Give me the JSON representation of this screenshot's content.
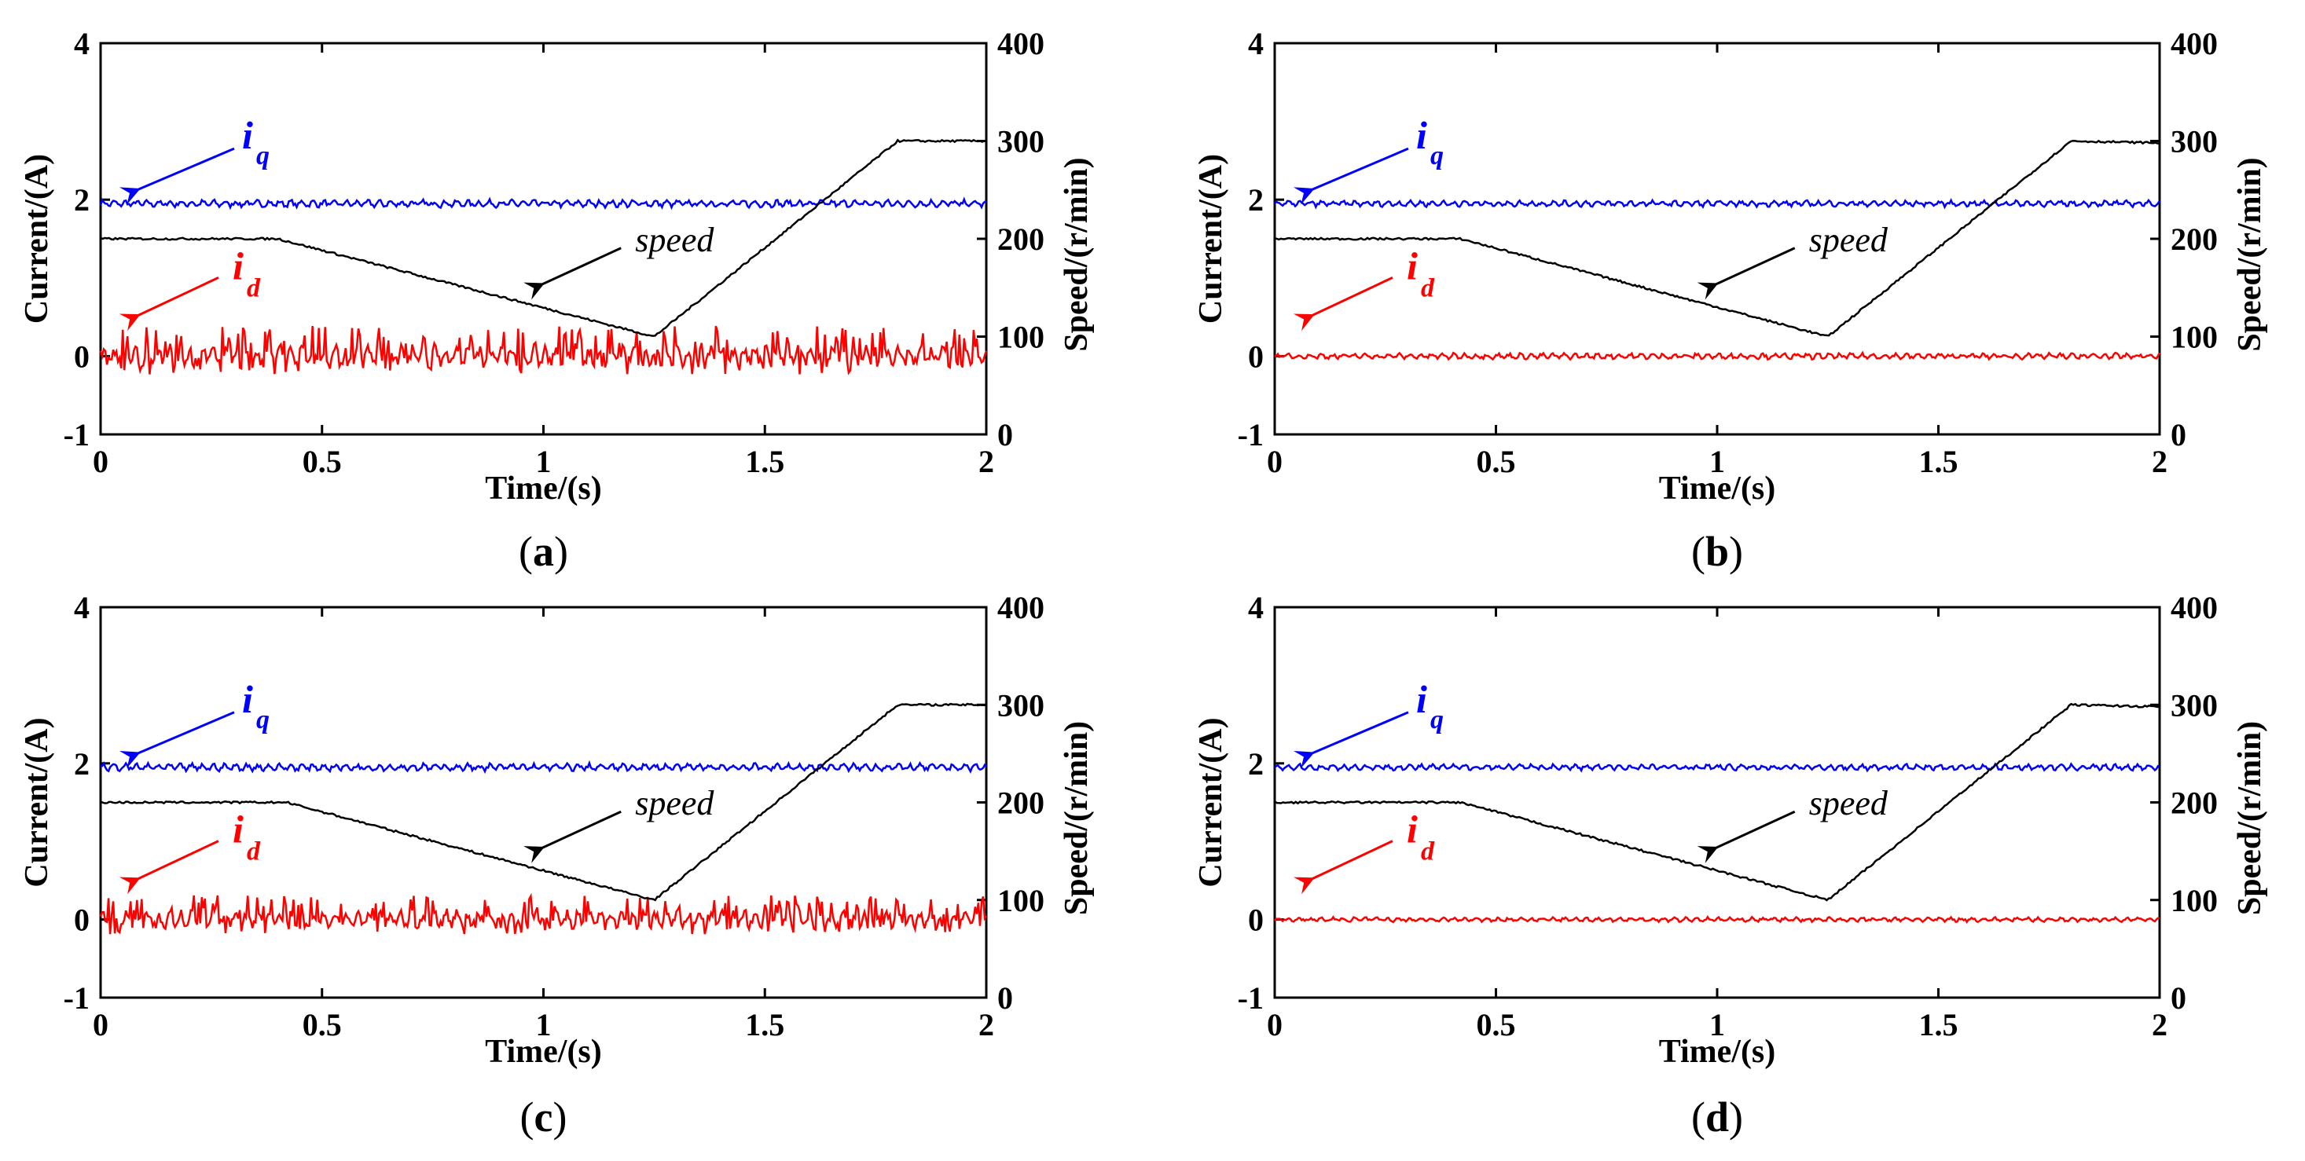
{
  "colors": {
    "iq": "#0000ff",
    "id": "#ff0000",
    "speed": "#000000"
  },
  "chart_data": [
    {
      "type": "line",
      "caption": "a",
      "xlabel": "Time/(s)",
      "ylabel_left": "Current/(A)",
      "ylabel_right": "Speed/(r/min)",
      "xlim": [
        0,
        2
      ],
      "ylim_left": [
        -1,
        4
      ],
      "ylim_right": [
        0,
        400
      ],
      "xticks": [
        "0",
        "0.5",
        "1",
        "1.5",
        "2"
      ],
      "yticks_left": [
        "-1",
        "0",
        "2",
        "4"
      ],
      "yticks_right": [
        "0",
        "100",
        "200",
        "300",
        "400"
      ],
      "annotations": {
        "iq": "i",
        "iq_sub": "q",
        "id": "i",
        "id_sub": "d",
        "speed": "speed"
      },
      "series": [
        {
          "name": "iq",
          "axis": "left",
          "mean": 1.95,
          "ripple": 0.05,
          "x": [
            0,
            2
          ],
          "values": [
            1.95,
            1.95
          ]
        },
        {
          "name": "id",
          "axis": "left",
          "mean": 0.0,
          "ripple": 0.15,
          "spiky": true,
          "x": [
            0,
            2
          ],
          "values": [
            0.0,
            0.0
          ]
        },
        {
          "name": "speed",
          "axis": "right",
          "x": [
            0,
            0.4,
            1.25,
            1.8,
            2.0
          ],
          "values": [
            200,
            200,
            100,
            300,
            300
          ]
        }
      ]
    },
    {
      "type": "line",
      "caption": "b",
      "xlabel": "Time/(s)",
      "ylabel_left": "Current/(A)",
      "ylabel_right": "Speed/(r/min)",
      "xlim": [
        0,
        2
      ],
      "ylim_left": [
        -1,
        4
      ],
      "ylim_right": [
        0,
        400
      ],
      "xticks": [
        "0",
        "0.5",
        "1",
        "1.5",
        "2"
      ],
      "yticks_left": [
        "-1",
        "0",
        "2",
        "4"
      ],
      "yticks_right": [
        "0",
        "100",
        "200",
        "300",
        "400"
      ],
      "annotations": {
        "iq": "i",
        "iq_sub": "q",
        "id": "i",
        "id_sub": "d",
        "speed": "speed"
      },
      "series": [
        {
          "name": "iq",
          "axis": "left",
          "mean": 1.95,
          "ripple": 0.04,
          "x": [
            0,
            2
          ],
          "values": [
            1.95,
            1.95
          ]
        },
        {
          "name": "id",
          "axis": "left",
          "mean": 0.0,
          "ripple": 0.04,
          "spiky": false,
          "x": [
            0,
            2
          ],
          "values": [
            0.0,
            0.0
          ]
        },
        {
          "name": "speed",
          "axis": "right",
          "x": [
            0,
            0.42,
            1.25,
            1.8,
            2.0
          ],
          "values": [
            200,
            200,
            100,
            300,
            298
          ]
        }
      ]
    },
    {
      "type": "line",
      "caption": "c",
      "xlabel": "Time/(s)",
      "ylabel_left": "Current/(A)",
      "ylabel_right": "Speed/(r/min)",
      "xlim": [
        0,
        2
      ],
      "ylim_left": [
        -1,
        4
      ],
      "ylim_right": [
        0,
        400
      ],
      "xticks": [
        "0",
        "0.5",
        "1",
        "1.5",
        "2"
      ],
      "yticks_left": [
        "-1",
        "0",
        "2",
        "4"
      ],
      "yticks_right": [
        "0",
        "100",
        "200",
        "300",
        "400"
      ],
      "annotations": {
        "iq": "i",
        "iq_sub": "q",
        "id": "i",
        "id_sub": "d",
        "speed": "speed"
      },
      "series": [
        {
          "name": "iq",
          "axis": "left",
          "mean": 1.95,
          "ripple": 0.05,
          "x": [
            0,
            2
          ],
          "values": [
            1.95,
            1.95
          ]
        },
        {
          "name": "id",
          "axis": "left",
          "mean": 0.0,
          "ripple": 0.12,
          "spiky": true,
          "x": [
            0,
            2
          ],
          "values": [
            0.0,
            0.0
          ]
        },
        {
          "name": "speed",
          "axis": "right",
          "x": [
            0,
            0.42,
            1.25,
            1.8,
            2.0
          ],
          "values": [
            200,
            200,
            100,
            300,
            300
          ]
        }
      ]
    },
    {
      "type": "line",
      "caption": "d",
      "xlabel": "Time/(s)",
      "ylabel_left": "Current/(A)",
      "ylabel_right": "Speed/(r/min)",
      "xlim": [
        0,
        2
      ],
      "ylim_left": [
        -1,
        4
      ],
      "ylim_right": [
        0,
        400
      ],
      "xticks": [
        "0",
        "0.5",
        "1",
        "1.5",
        "2"
      ],
      "yticks_left": [
        "-1",
        "0",
        "2",
        "4"
      ],
      "yticks_right": [
        "0",
        "100",
        "200",
        "300",
        "400"
      ],
      "annotations": {
        "iq": "i",
        "iq_sub": "q",
        "id": "i",
        "id_sub": "d",
        "speed": "speed"
      },
      "series": [
        {
          "name": "iq",
          "axis": "left",
          "mean": 1.95,
          "ripple": 0.04,
          "x": [
            0,
            2
          ],
          "values": [
            1.95,
            1.95
          ]
        },
        {
          "name": "id",
          "axis": "left",
          "mean": 0.0,
          "ripple": 0.03,
          "spiky": false,
          "x": [
            0,
            2
          ],
          "values": [
            0.0,
            0.0
          ]
        },
        {
          "name": "speed",
          "axis": "right",
          "x": [
            0,
            0.42,
            1.25,
            1.8,
            2.0
          ],
          "values": [
            200,
            200,
            100,
            300,
            298
          ]
        }
      ]
    }
  ]
}
